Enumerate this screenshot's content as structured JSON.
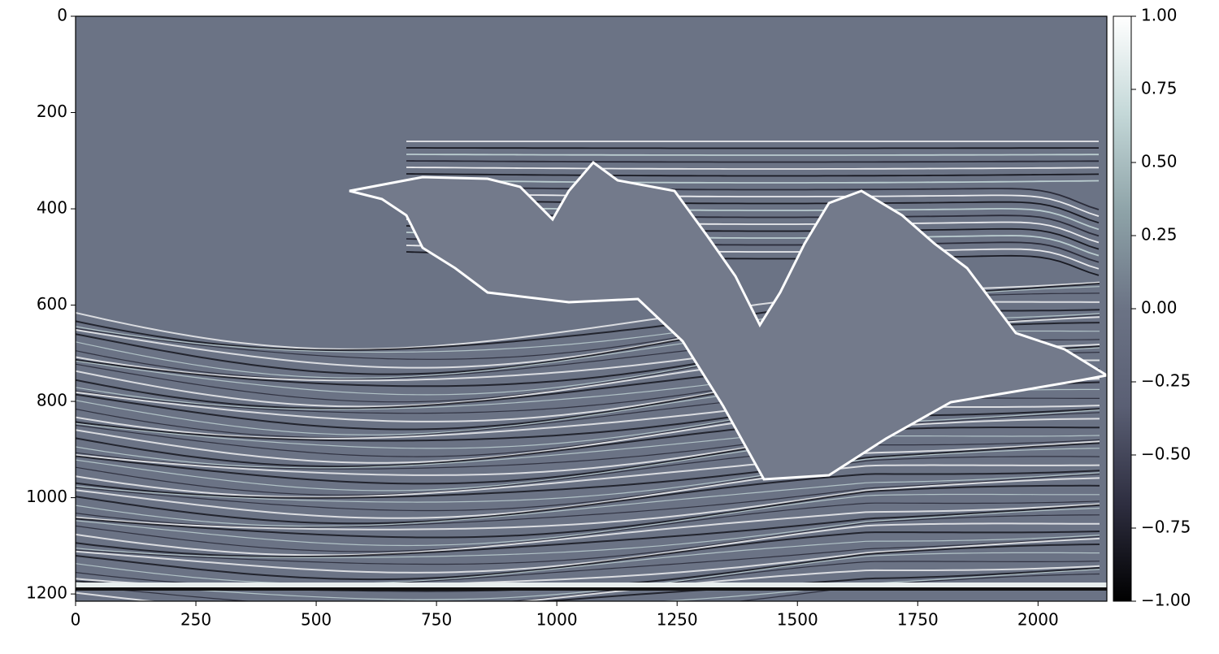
{
  "chart_data": {
    "type": "image",
    "xlim": [
      0,
      2143
    ],
    "xticks": [
      0,
      250,
      500,
      750,
      1000,
      1250,
      1500,
      1750,
      2000
    ],
    "ylim": [
      0,
      1215
    ],
    "y_inverted": true,
    "yticks": [
      0,
      200,
      400,
      600,
      800,
      1000,
      1200
    ],
    "colorbar": {
      "lim": [
        -1,
        1
      ],
      "ticks": [
        {
          "value": 1,
          "label": "1.00"
        },
        {
          "value": 0.75,
          "label": "0.75"
        },
        {
          "value": 0.5,
          "label": "0.50"
        },
        {
          "value": 0.25,
          "label": "0.25"
        },
        {
          "value": 0,
          "label": "0.00"
        },
        {
          "value": -0.25,
          "label": "−0.25"
        },
        {
          "value": -0.5,
          "label": "−0.50"
        },
        {
          "value": -0.75,
          "label": "−0.75"
        },
        {
          "value": -1,
          "label": "−1.00"
        }
      ],
      "colormap": [
        "#000000",
        "#2e2e40",
        "#5a5f74",
        "#6b7385",
        "#8ea3a8",
        "#c4d8d8",
        "#ffffff"
      ]
    }
  }
}
